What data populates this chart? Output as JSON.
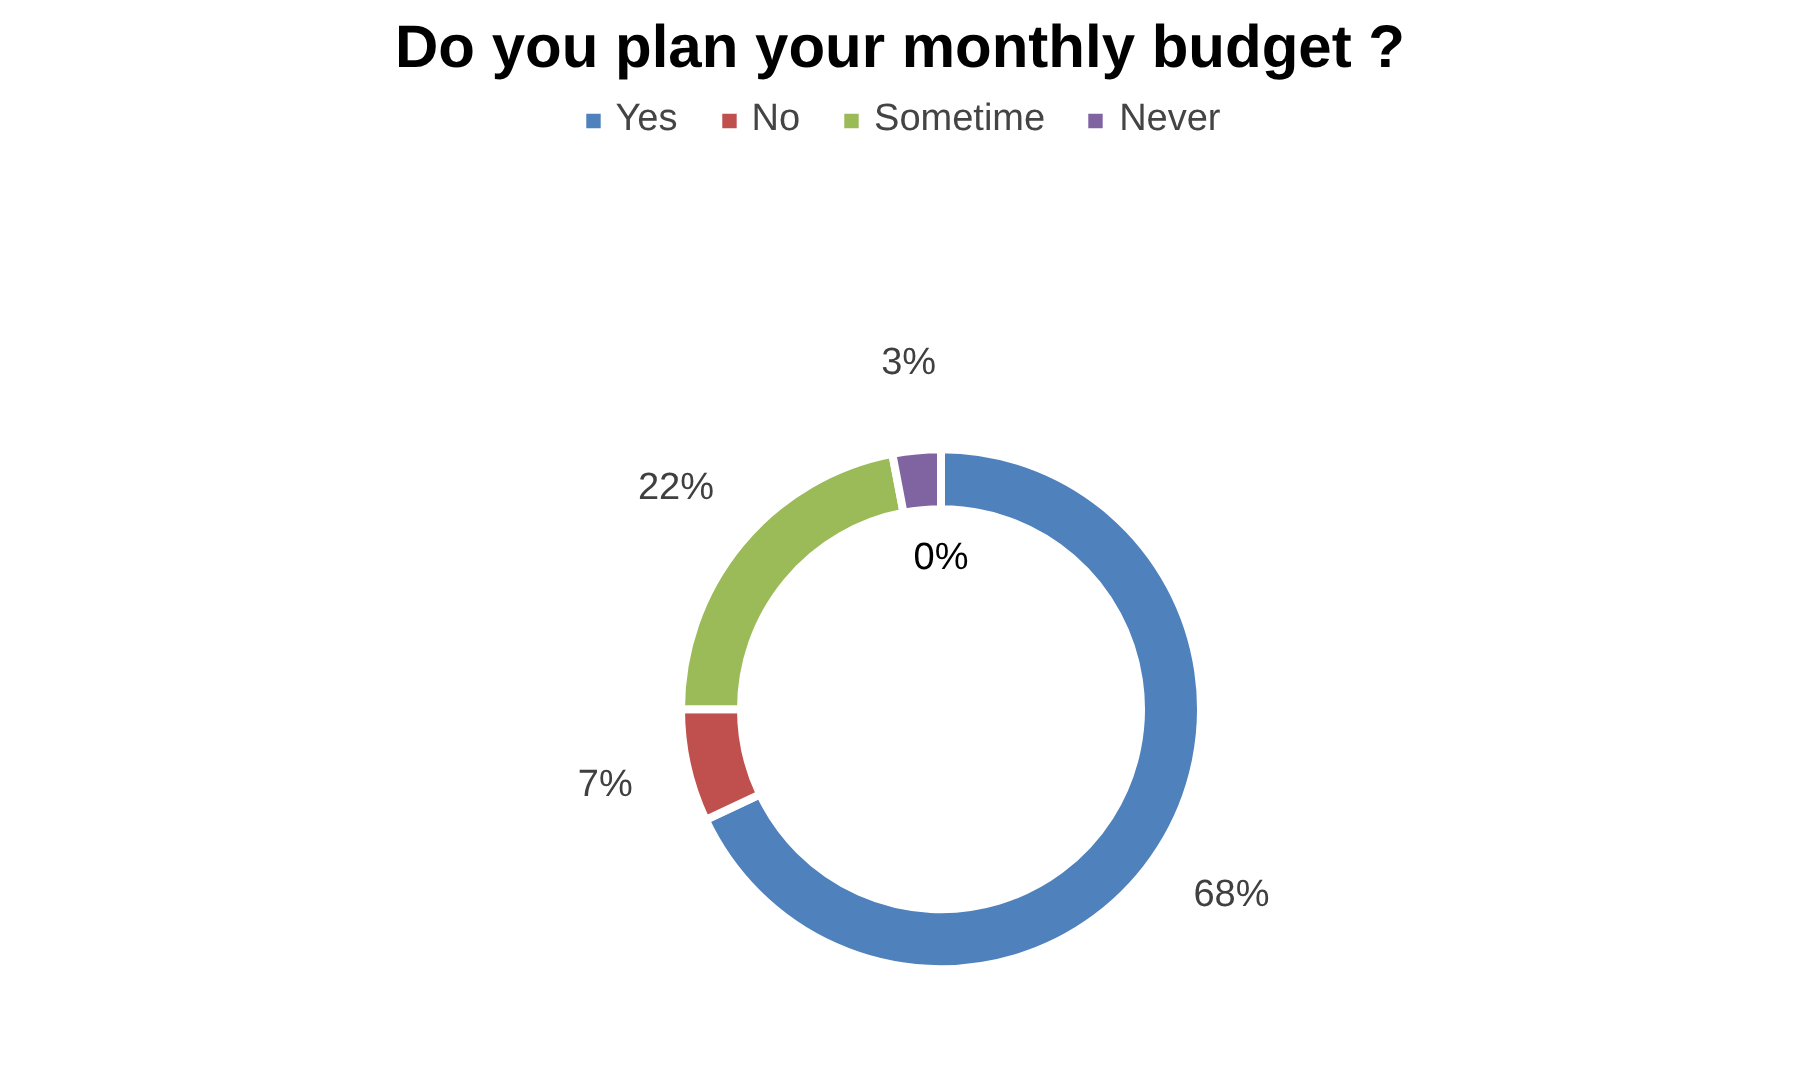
{
  "chart_data": {
    "type": "donut",
    "title": "Do you plan your monthly budget ?",
    "categories": [
      "Yes",
      "No",
      "Sometime",
      "Never"
    ],
    "values": [
      68,
      7,
      22,
      3
    ],
    "value_labels": [
      "68%",
      "7%",
      "22%",
      "3%"
    ],
    "colors": [
      "#4f81bd",
      "#c0504d",
      "#9bbb59",
      "#8064a2"
    ],
    "annotations": [
      "0%"
    ],
    "legend": "top"
  }
}
